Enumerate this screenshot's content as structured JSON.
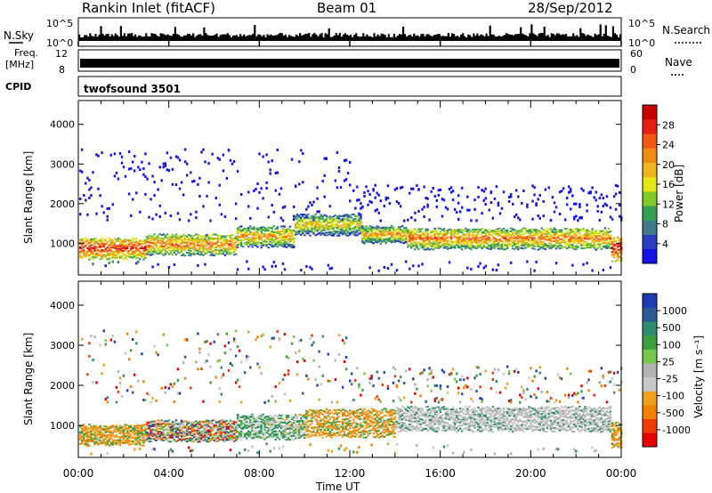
{
  "header": {
    "station": "Rankin Inlet (fitACF)",
    "beam": "Beam 01",
    "date": "28/Sep/2012"
  },
  "top_panels": {
    "nsky_label": "N.Sky",
    "nsky_ticks": [
      "10^5",
      "10^0"
    ],
    "nsearch_label": "N.Search",
    "nsearch_ticks": [
      "10^5",
      "10^0"
    ],
    "freq_label_line1": "Freq.",
    "freq_label_line2": "[MHz]",
    "freq_ticks": [
      "12",
      "8"
    ],
    "nave_label": "Nave",
    "nave_ticks": [
      "60",
      "0"
    ],
    "cpid_label": "CPID",
    "cpid_value": "twofsound 3501"
  },
  "colors": {
    "power_scale": [
      "#1414e6",
      "#283cbe",
      "#3c7a8c",
      "#32a050",
      "#82c828",
      "#e6e614",
      "#f0b41e",
      "#f08c14",
      "#f05a14",
      "#e61e14",
      "#c80000"
    ],
    "velocity_scale": [
      "#e60000",
      "#f03c00",
      "#f08200",
      "#f0a01e",
      "#c8c8c8",
      "#b4b4b4",
      "#78c850",
      "#3ca03c",
      "#2d8c6e",
      "#2d5a96",
      "#1e3cb4"
    ],
    "ground_scatter": "#bebebe"
  },
  "chart_data": [
    {
      "type": "heatmap",
      "panel": "power",
      "ylabel": "Slant Range [km]",
      "xlabel": "",
      "x_range_hours": [
        0,
        24
      ],
      "y_range_km": [
        200,
        4600
      ],
      "y_ticks": [
        "1000",
        "2000",
        "3000",
        "4000"
      ],
      "x_ticks": [
        "00:00",
        "04:00",
        "08:00",
        "12:00",
        "16:00",
        "20:00",
        "00:00"
      ],
      "colorbar": {
        "label": "Power [dB]",
        "ticks": [
          "4",
          "8",
          "12",
          "16",
          "20",
          "24",
          "28"
        ],
        "range": [
          0,
          30
        ]
      },
      "scatter_bands_km": [
        {
          "t0": 0.0,
          "t1": 3.0,
          "center": 900,
          "width": 500,
          "level": 26
        },
        {
          "t0": 3.0,
          "t1": 7.0,
          "center": 1000,
          "width": 500,
          "level": 22
        },
        {
          "t0": 7.0,
          "t1": 9.5,
          "center": 1200,
          "width": 500,
          "level": 20
        },
        {
          "t0": 9.5,
          "t1": 12.5,
          "center": 1500,
          "width": 500,
          "level": 18
        },
        {
          "t0": 12.5,
          "t1": 14.5,
          "center": 1250,
          "width": 400,
          "level": 20
        },
        {
          "t0": 14.5,
          "t1": 23.5,
          "center": 1150,
          "width": 500,
          "level": 22
        },
        {
          "t0": 23.5,
          "t1": 24.0,
          "center": 900,
          "width": 600,
          "level": 27
        }
      ]
    },
    {
      "type": "heatmap",
      "panel": "velocity",
      "ylabel": "Slant Range [km]",
      "xlabel": "Time UT",
      "x_range_hours": [
        0,
        24
      ],
      "y_range_km": [
        200,
        4600
      ],
      "y_ticks": [
        "1000",
        "2000",
        "3000",
        "4000"
      ],
      "x_ticks": [
        "00:00",
        "04:00",
        "08:00",
        "12:00",
        "16:00",
        "20:00",
        "00:00"
      ],
      "colorbar": {
        "label": "Velocity [m s⁻¹]",
        "ticks": [
          "1000",
          "500",
          "100",
          "25",
          "-25",
          "-100",
          "-500",
          "-1000"
        ],
        "range": [
          -1000,
          1000
        ]
      },
      "scatter_bands_km": [
        {
          "t0": 0.0,
          "t1": 3.0,
          "center": 800,
          "width": 500,
          "mode": "negative"
        },
        {
          "t0": 3.0,
          "t1": 7.0,
          "center": 900,
          "width": 500,
          "mode": "mixed"
        },
        {
          "t0": 7.0,
          "t1": 10.0,
          "center": 1000,
          "width": 600,
          "mode": "positive"
        },
        {
          "t0": 10.0,
          "t1": 14.0,
          "center": 1100,
          "width": 700,
          "mode": "negative"
        },
        {
          "t0": 14.0,
          "t1": 23.5,
          "center": 1200,
          "width": 600,
          "mode": "ground"
        },
        {
          "t0": 23.5,
          "t1": 24.0,
          "center": 800,
          "width": 600,
          "mode": "negative"
        }
      ]
    }
  ]
}
